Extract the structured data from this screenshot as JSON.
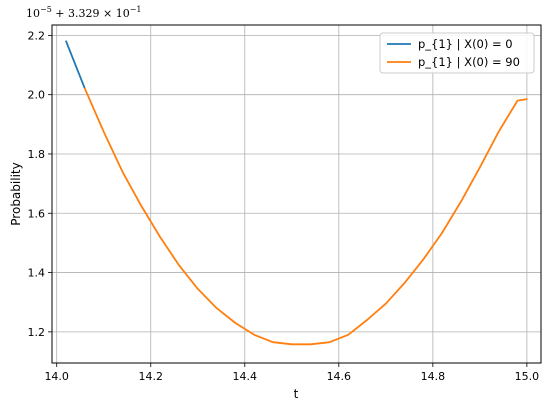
{
  "chart_data": {
    "type": "line",
    "title": "",
    "xlabel": "t",
    "ylabel": "Probability",
    "offset_label": {
      "prefix": "10",
      "prefix_exp": "−5",
      "middle": " + 3.329 × 10",
      "suffix_exp": "−1"
    },
    "xlim": [
      13.99,
      15.03
    ],
    "ylim": [
      1.095,
      2.235
    ],
    "x_ticks": [
      14.0,
      14.2,
      14.4,
      14.6,
      14.8,
      15.0
    ],
    "x_tick_labels": [
      "14.0",
      "14.2",
      "14.4",
      "14.6",
      "14.8",
      "15.0"
    ],
    "y_ticks": [
      1.2,
      1.4,
      1.6,
      1.8,
      2.0,
      2.2
    ],
    "y_tick_labels": [
      "1.2",
      "1.4",
      "1.6",
      "1.8",
      "2.0",
      "2.2"
    ],
    "grid": true,
    "legend_position": "top-right",
    "series": [
      {
        "name": "p_{1} | X(0) = 0",
        "color": "#1f77b4",
        "x": [
          14.02,
          14.06
        ],
        "y": [
          2.18,
          2.02
        ]
      },
      {
        "name": "p_{1} | X(0) = 90",
        "color": "#ff7f0e",
        "x": [
          14.06,
          14.1,
          14.14,
          14.18,
          14.22,
          14.26,
          14.3,
          14.34,
          14.38,
          14.42,
          14.46,
          14.5,
          14.54,
          14.58,
          14.62,
          14.66,
          14.7,
          14.74,
          14.78,
          14.82,
          14.86,
          14.9,
          14.94,
          14.98,
          15.0
        ],
        "y": [
          2.02,
          1.875,
          1.74,
          1.625,
          1.52,
          1.425,
          1.345,
          1.28,
          1.23,
          1.19,
          1.165,
          1.158,
          1.158,
          1.165,
          1.19,
          1.24,
          1.295,
          1.365,
          1.445,
          1.535,
          1.64,
          1.755,
          1.875,
          1.98,
          1.985
        ]
      }
    ]
  }
}
